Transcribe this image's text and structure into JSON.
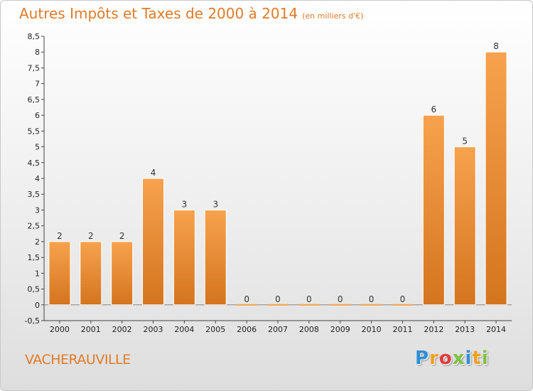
{
  "chart_data": {
    "type": "bar",
    "title": "Autres Impôts et Taxes de 2000 à 2014",
    "subtitle": "(en milliers d'€)",
    "categories": [
      "2000",
      "2001",
      "2002",
      "2003",
      "2004",
      "2005",
      "2006",
      "2007",
      "2008",
      "2009",
      "2010",
      "2011",
      "2012",
      "2013",
      "2014"
    ],
    "values": [
      2,
      2,
      2,
      4,
      3,
      3,
      0,
      0,
      0,
      0,
      0,
      0,
      6,
      5,
      8
    ],
    "value_labels": [
      "2",
      "2",
      "2",
      "4",
      "3",
      "3",
      "0",
      "0",
      "0",
      "0",
      "0",
      "0",
      "6",
      "5",
      "8"
    ],
    "ylim": [
      -0.5,
      8.5
    ],
    "yticks": [
      "-0,5",
      "0",
      "0,5",
      "1",
      "1,5",
      "2",
      "2,5",
      "3",
      "3,5",
      "4",
      "4,5",
      "5",
      "5,5",
      "6",
      "6,5",
      "7",
      "7,5",
      "8",
      "8,5"
    ],
    "ytick_values": [
      -0.5,
      0,
      0.5,
      1,
      1.5,
      2,
      2.5,
      3,
      3.5,
      4,
      4.5,
      5,
      5.5,
      6,
      6.5,
      7,
      7.5,
      8,
      8.5
    ],
    "grid": false,
    "bar_color_top": "#f7a24e",
    "bar_color_bottom": "#d4741e"
  },
  "footer": {
    "commune": "VACHERAUVILLE",
    "logo_letters": [
      {
        "char": "P",
        "color": "#2e8fd6"
      },
      {
        "char": "r",
        "color": "#f0a020"
      },
      {
        "char": "o",
        "color": "#e03c3c"
      },
      {
        "char": "x",
        "color": "#7cc242"
      },
      {
        "char": "i",
        "color": "#2e8fd6"
      },
      {
        "char": "t",
        "color": "#f0a020"
      },
      {
        "char": "i",
        "color": "#7cc242"
      }
    ]
  }
}
